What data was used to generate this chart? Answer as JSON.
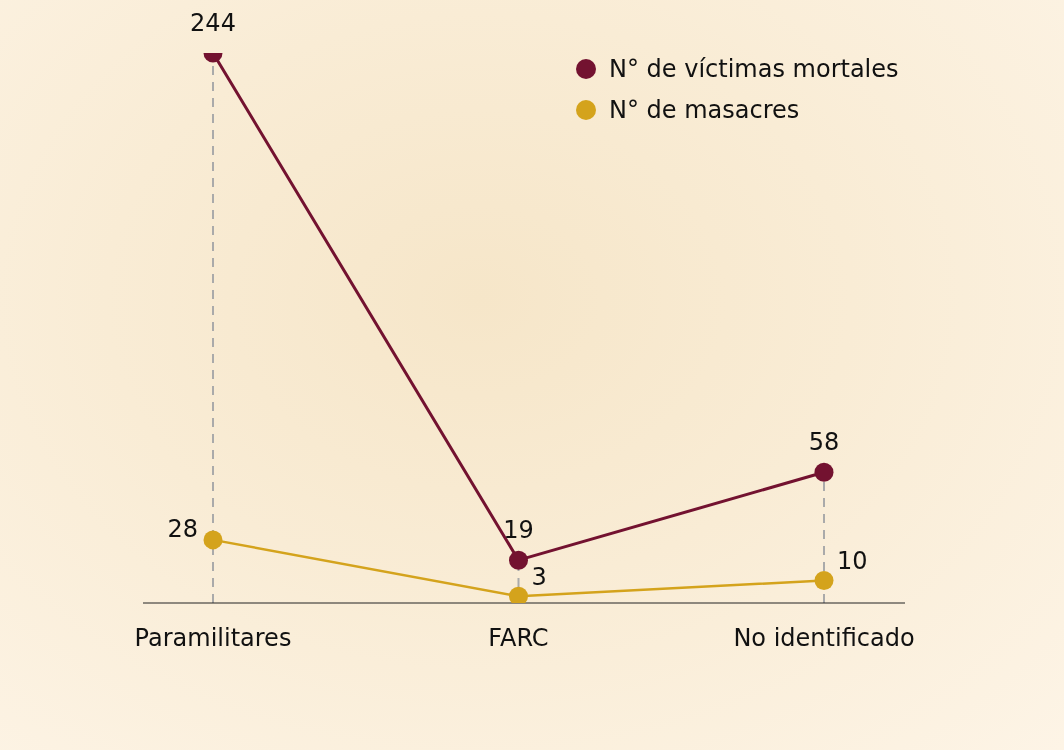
{
  "chart_data": {
    "type": "line",
    "categories": [
      "Paramilitares",
      "FARC",
      "No identificado"
    ],
    "series": [
      {
        "name": "N° de víctimas mortales",
        "color": "#731230",
        "values": [
          244,
          19,
          58
        ]
      },
      {
        "name": "N° de masacres",
        "color": "#d4a31c",
        "values": [
          28,
          3,
          10
        ]
      }
    ],
    "ylim": [
      0,
      244
    ],
    "tick_labels": "x",
    "grid": "x",
    "legend": "top right",
    "marker": "circle",
    "data_labels": true
  }
}
